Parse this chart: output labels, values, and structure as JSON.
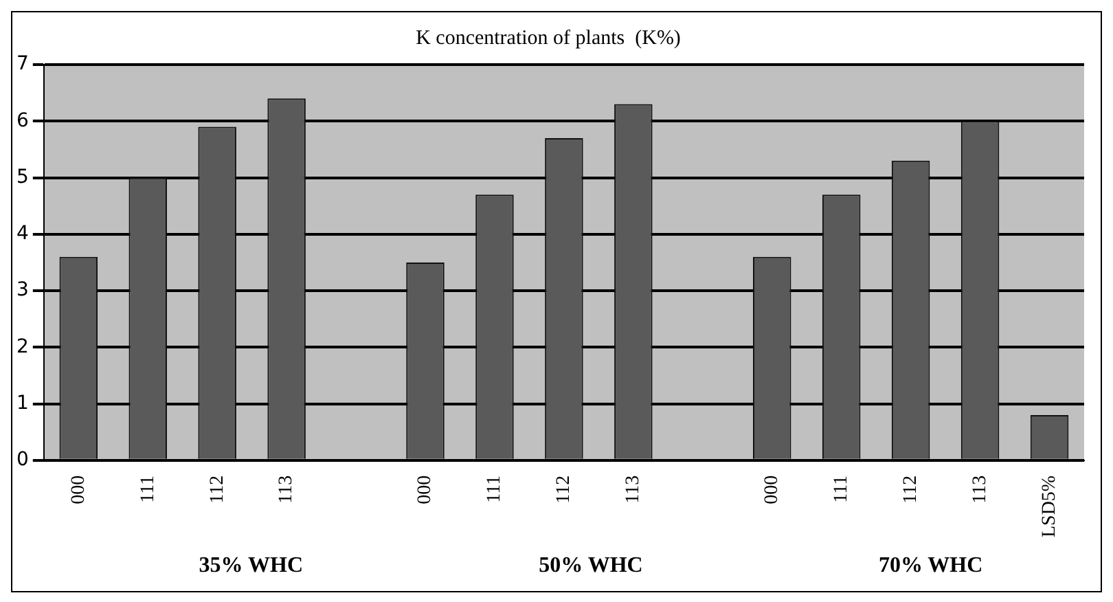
{
  "chart_data": {
    "type": "bar",
    "title": "K concentration of plants  (K%)",
    "categories": [
      "000",
      "111",
      "112",
      "113",
      null,
      "000",
      "111",
      "112",
      "113",
      null,
      "000",
      "111",
      "112",
      "113",
      "LSD5%"
    ],
    "values": [
      3.6,
      5.0,
      5.9,
      6.4,
      null,
      3.5,
      4.7,
      5.7,
      6.3,
      null,
      3.6,
      4.7,
      5.3,
      6.0,
      0.8
    ],
    "color": "#5a5a5a",
    "ylim": [
      0,
      7
    ],
    "yticks": [
      0,
      1,
      2,
      3,
      4,
      5,
      6,
      7
    ],
    "grid": "y",
    "legend": false,
    "annotations": [
      "35% WHC",
      "50% WHC",
      "70% WHC"
    ]
  }
}
